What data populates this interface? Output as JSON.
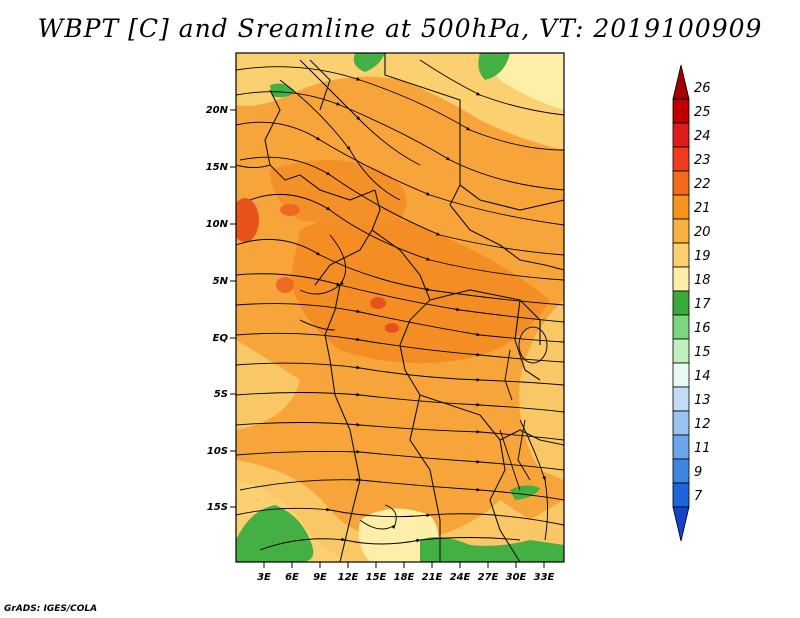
{
  "title": "WBPT [C] and Sreamline at 500hPa, VT: 2019100909",
  "credit": "GrADS: IGES/COLA",
  "map": {
    "lat_labels": [
      "20N",
      "15N",
      "10N",
      "5N",
      "EQ",
      "5S",
      "10S",
      "15S"
    ],
    "lon_labels": [
      "3E",
      "6E",
      "9E",
      "12E",
      "15E",
      "18E",
      "21E",
      "24E",
      "27E",
      "30E",
      "33E"
    ]
  },
  "colorbar": {
    "labels": [
      "26",
      "25",
      "24",
      "23",
      "22",
      "21",
      "20",
      "19",
      "18",
      "17",
      "16",
      "15",
      "14",
      "13",
      "12",
      "11",
      "9",
      "7"
    ],
    "colors": [
      "#a50000",
      "#c00000",
      "#dd1c1c",
      "#f03c1e",
      "#f46a1c",
      "#f7941e",
      "#f9b240",
      "#fbd070",
      "#fdefa8",
      "#3aab3a",
      "#7cd67c",
      "#bfefbf",
      "#e9f9f2",
      "#c2ddf7",
      "#99c4f1",
      "#6aa6ea",
      "#3d86e2",
      "#1f64d8",
      "#1144c8"
    ]
  }
}
